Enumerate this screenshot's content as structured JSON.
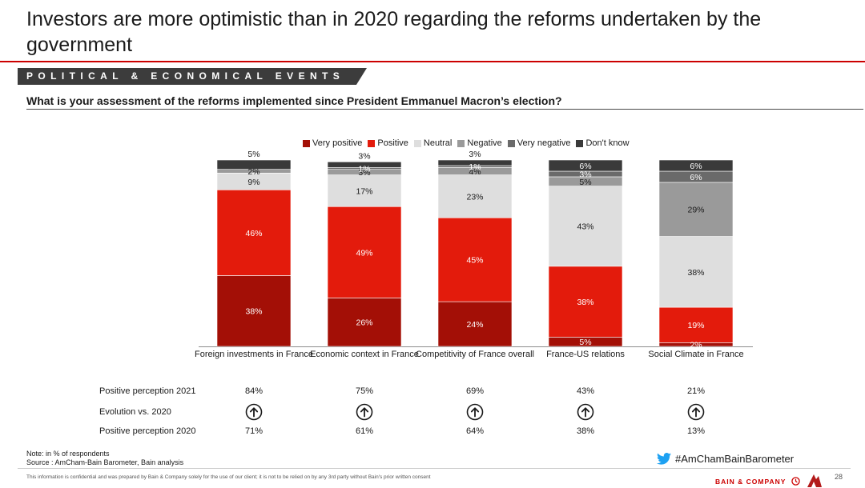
{
  "slide": {
    "title": "Investors are more optimistic than in 2020 regarding the reforms undertaken by the government",
    "section": "POLITICAL & ECONOMICAL EVENTS",
    "question": "What is your assessment of the reforms implemented since President Emmanuel Macron’s election?",
    "note": "Note: in % of respondents",
    "source": "Source : AmCham-Bain Barometer, Bain analysis",
    "hashtag": "#AmChamBainBarometer",
    "disclaimer": "This information is confidential and was prepared by Bain & Company solely for the use of our client; it is not to be relied on by any 3rd party without Bain's prior written consent",
    "brand": "BAIN & COMPANY",
    "page_number": "28",
    "icons": {
      "arrow_up": "arrow-up-circle-icon",
      "twitter": "twitter-bird-icon",
      "bain_logo": "bain-logo-icon",
      "amcham_logo": "amcham-logo-icon"
    },
    "colors": {
      "accent": "#cc0000",
      "section_band": "#3c3c3c"
    }
  },
  "chart_data": {
    "type": "bar",
    "stacked": true,
    "categories": [
      "Foreign investments in France",
      "Economic context in France",
      "Competitivity of France overall",
      "France-US relations",
      "Social Climate in France"
    ],
    "series": [
      {
        "name": "Very positive",
        "color": "#a30f06",
        "values": [
          38,
          26,
          24,
          5,
          2
        ]
      },
      {
        "name": "Positive",
        "color": "#e31b0c",
        "values": [
          46,
          49,
          45,
          38,
          19
        ]
      },
      {
        "name": "Neutral",
        "color": "#dedede",
        "values": [
          9,
          17,
          23,
          43,
          38
        ]
      },
      {
        "name": "Negative",
        "color": "#9a9a9a",
        "values": [
          2,
          3,
          4,
          5,
          29
        ]
      },
      {
        "name": "Very negative",
        "color": "#6a6a6a",
        "values": [
          0,
          1,
          1,
          3,
          6
        ]
      },
      {
        "name": "Don't know",
        "color": "#3a3a3a",
        "values": [
          5,
          3,
          3,
          6,
          6
        ]
      }
    ],
    "labels": [
      [
        {
          "text": "38%",
          "series": 0
        },
        {
          "text": "46%",
          "series": 1
        },
        {
          "text": "9%",
          "series": 2
        },
        {
          "text": "2%",
          "series": 3
        },
        {
          "text": "5%",
          "series": 5,
          "above": true
        }
      ],
      [
        {
          "text": "26%",
          "series": 0
        },
        {
          "text": "49%",
          "series": 1
        },
        {
          "text": "17%",
          "series": 2
        },
        {
          "text": "3%",
          "series": 3
        },
        {
          "text": "1%",
          "series": 4
        },
        {
          "text": "3%",
          "series": 5,
          "above": true
        }
      ],
      [
        {
          "text": "24%",
          "series": 0
        },
        {
          "text": "45%",
          "series": 1
        },
        {
          "text": "23%",
          "series": 2
        },
        {
          "text": "4%",
          "series": 3
        },
        {
          "text": "1%",
          "series": 4
        },
        {
          "text": "3%",
          "series": 5,
          "above": true
        }
      ],
      [
        {
          "text": "5%",
          "series": 0
        },
        {
          "text": "38%",
          "series": 1
        },
        {
          "text": "43%",
          "series": 2
        },
        {
          "text": "5%",
          "series": 3
        },
        {
          "text": "3%",
          "series": 4
        },
        {
          "text": "6%",
          "series": 5
        }
      ],
      [
        {
          "text": "2%",
          "series": 0
        },
        {
          "text": "19%",
          "series": 1
        },
        {
          "text": "38%",
          "series": 2
        },
        {
          "text": "29%",
          "series": 3
        },
        {
          "text": "6%",
          "series": 4
        },
        {
          "text": "6%",
          "series": 5
        }
      ]
    ],
    "ylim": [
      0,
      100
    ],
    "legend_position": "top",
    "grid": false
  },
  "table": {
    "rows": [
      {
        "label": "Positive perception 2021",
        "values": [
          "84%",
          "75%",
          "69%",
          "43%",
          "21%"
        ]
      },
      {
        "label": "Evolution vs. 2020",
        "icon": "arrow-up-circle-icon"
      },
      {
        "label": "Positive perception 2020",
        "values": [
          "71%",
          "61%",
          "64%",
          "38%",
          "13%"
        ]
      }
    ]
  }
}
